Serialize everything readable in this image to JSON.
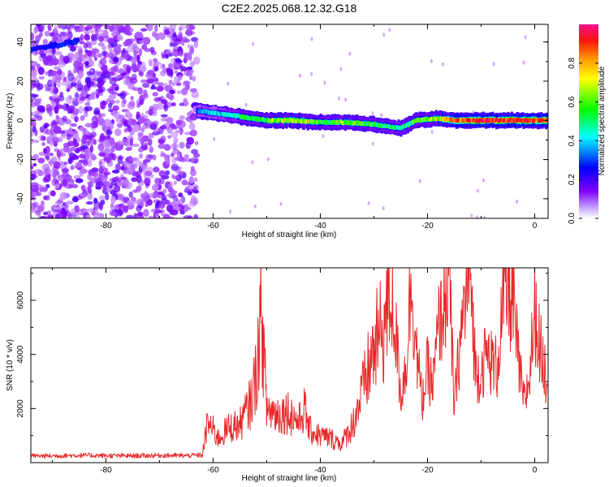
{
  "title": "C2E2.2025.068.12.32.G18",
  "chart_data": [
    {
      "type": "heatmap",
      "xlabel": "Height of straight line (km)",
      "ylabel": "Frequency (Hz)",
      "xlim": [
        -94,
        2.5
      ],
      "ylim": [
        -50,
        49
      ],
      "xticks": [
        -80,
        -60,
        -40,
        -20,
        0
      ],
      "yticks": [
        -40,
        -20,
        0,
        20,
        40
      ],
      "colorbar": {
        "label": "Normalized spectral amplitude",
        "range": [
          0,
          1
        ],
        "ticks": [
          0.0,
          0.2,
          0.4,
          0.6,
          0.8
        ],
        "tick_labels": [
          "0.0",
          "0.2",
          "0.4",
          "0.6",
          "0.8"
        ],
        "colormap": [
          "#ffffff",
          "#8000ff",
          "#0000ff",
          "#00ffff",
          "#00ff00",
          "#ffff00",
          "#ff8000",
          "#ff0000",
          "#ff0080"
        ]
      },
      "signal_band": {
        "x": [
          -63,
          -55,
          -50,
          -45,
          -40,
          -35,
          -30,
          -25,
          -22,
          -18,
          -15,
          -10,
          -5,
          0,
          2.5
        ],
        "frequency": [
          5,
          2,
          0,
          0,
          -1,
          -1,
          -2,
          -4,
          0,
          1,
          0,
          0,
          0,
          0,
          0
        ],
        "amplitude": [
          0.3,
          0.45,
          0.55,
          0.6,
          0.5,
          0.55,
          0.5,
          0.45,
          0.5,
          0.6,
          0.8,
          0.9,
          0.9,
          0.9,
          0.85
        ]
      },
      "noise_region_x": [
        -94,
        -63
      ]
    },
    {
      "type": "line",
      "xlabel": "Height of straight line (km)",
      "ylabel": "SNR (10 * v/v)",
      "xlim": [
        -94,
        2.5
      ],
      "ylim": [
        0,
        7200
      ],
      "xticks": [
        -80,
        -60,
        -40,
        -20,
        0
      ],
      "yticks": [
        2000,
        4000,
        6000
      ],
      "color": "#e8282a",
      "series": [
        {
          "x": [
            -94,
            -90,
            -85,
            -80,
            -75,
            -70,
            -65,
            -62,
            -61,
            -59,
            -57,
            -55,
            -53,
            -52,
            -51,
            -50,
            -48,
            -46,
            -44,
            -43,
            -42,
            -40,
            -38,
            -36,
            -34,
            -32,
            -30,
            -28,
            -27,
            -26,
            -25,
            -24,
            -23,
            -22,
            -21,
            -20,
            -19,
            -18,
            -17,
            -16,
            -15,
            -14,
            -13,
            -12,
            -11,
            -10,
            -9,
            -8,
            -7,
            -6,
            -5,
            -4,
            -3,
            -2,
            -1,
            0,
            1,
            2.5
          ],
          "y": [
            250,
            250,
            270,
            260,
            250,
            270,
            260,
            280,
            1500,
            900,
            1300,
            1400,
            2200,
            3200,
            5600,
            2000,
            1800,
            1900,
            1500,
            2000,
            1200,
            1000,
            900,
            700,
            1400,
            2700,
            4200,
            5100,
            6300,
            5000,
            2500,
            3600,
            6800,
            4000,
            2200,
            3500,
            2800,
            4900,
            5800,
            7000,
            2000,
            4300,
            6000,
            7000,
            3300,
            3400,
            4000,
            3700,
            3500,
            5800,
            6300,
            5900,
            3600,
            2200,
            3100,
            5700,
            4200,
            2900
          ]
        }
      ]
    }
  ]
}
